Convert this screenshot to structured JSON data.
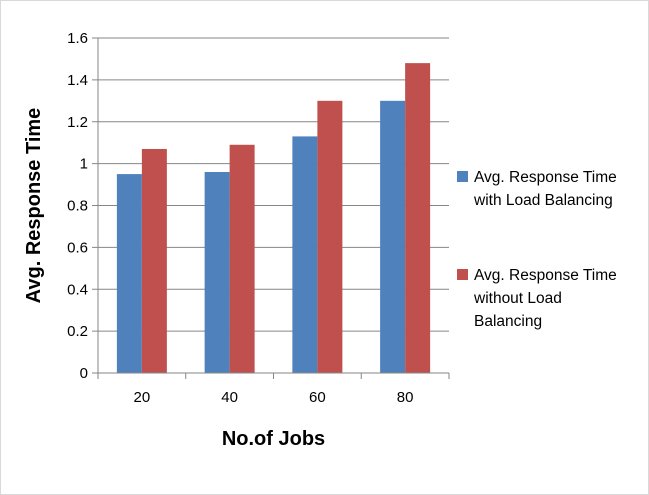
{
  "chart_data": {
    "type": "bar",
    "title": "",
    "xlabel": "No.of Jobs",
    "ylabel": "Avg. Response Time",
    "categories": [
      "20",
      "40",
      "60",
      "80"
    ],
    "ylim": [
      0,
      1.6
    ],
    "yticks": [
      "0",
      "0.2",
      "0.4",
      "0.6",
      "0.8",
      "1",
      "1.2",
      "1.4",
      "1.6"
    ],
    "grid": true,
    "legend_position": "right",
    "series": [
      {
        "name_lines": [
          "Avg. Response Time",
          "with Load Balancing"
        ],
        "color": "#4f81bd",
        "values": [
          0.95,
          0.96,
          1.13,
          1.3
        ]
      },
      {
        "name_lines": [
          "Avg. Response Time",
          "without Load",
          "Balancing"
        ],
        "color": "#c0504d",
        "values": [
          1.07,
          1.09,
          1.3,
          1.48
        ]
      }
    ]
  }
}
